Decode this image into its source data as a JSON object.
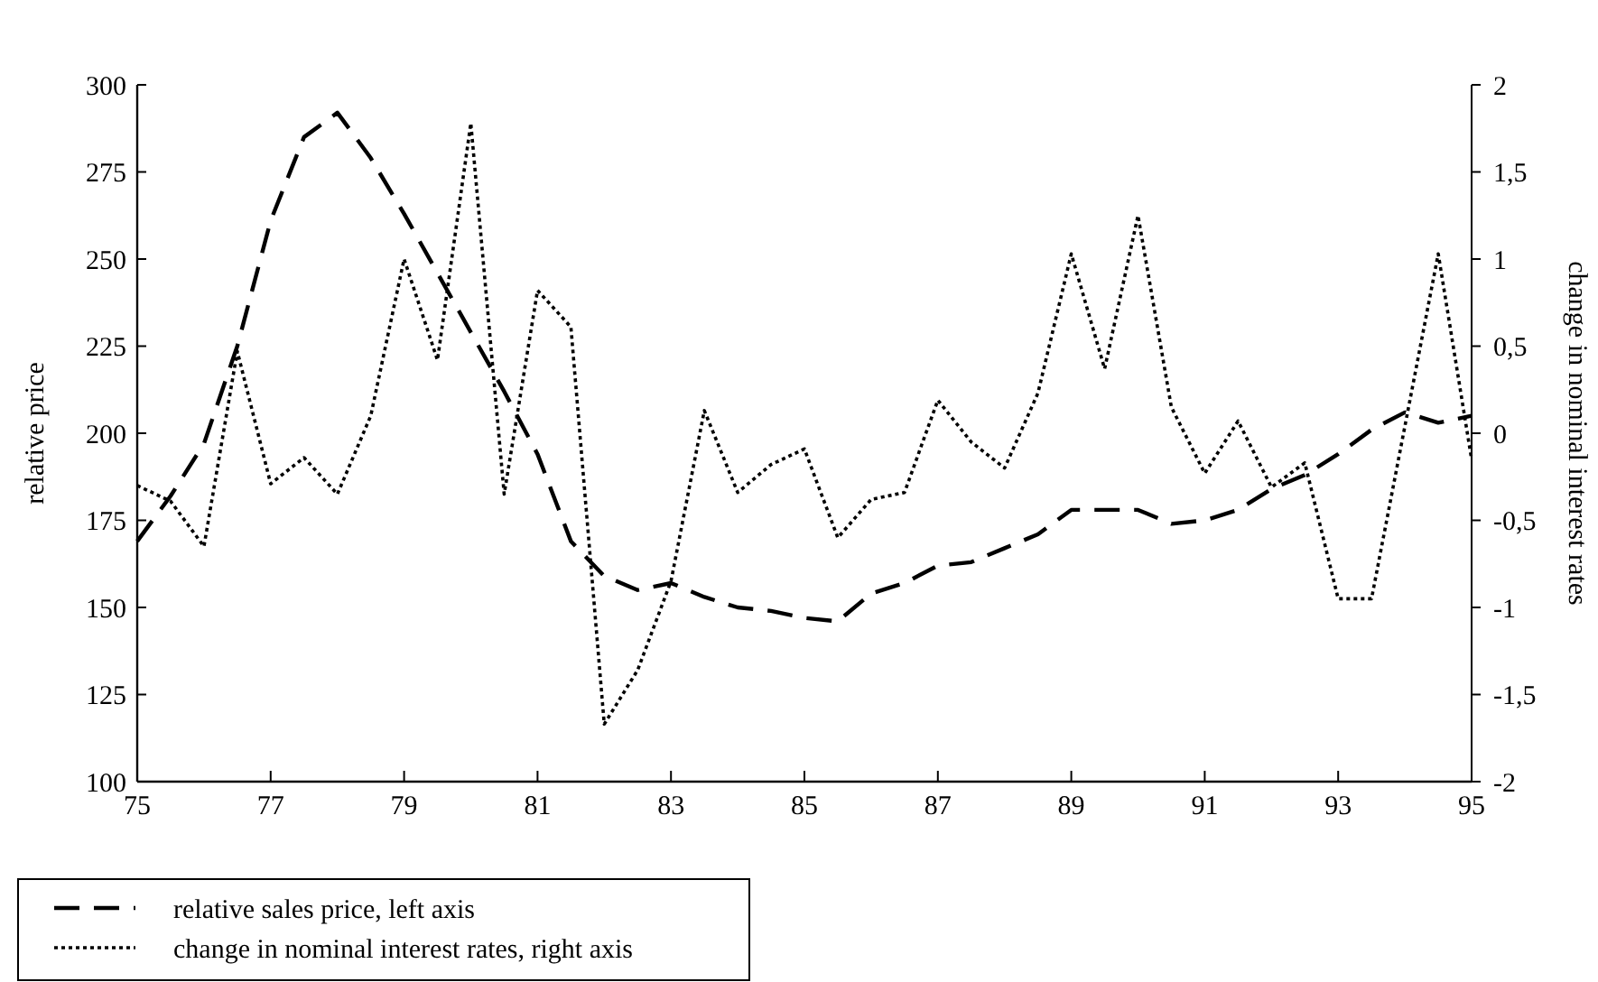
{
  "chart_data": {
    "type": "line",
    "xlabel": null,
    "ylabel": "relative price",
    "y2label": "change in nominal interest rates",
    "xlim": [
      75,
      95
    ],
    "xticks": [
      75,
      77,
      79,
      81,
      83,
      85,
      87,
      89,
      91,
      93,
      95
    ],
    "ylim": [
      100,
      300
    ],
    "yticks": [
      100,
      125,
      150,
      175,
      200,
      225,
      250,
      275,
      300
    ],
    "y2lim": [
      -2,
      2
    ],
    "y2ticks": [
      {
        "value": -2,
        "label": "-2"
      },
      {
        "value": -1.5,
        "label": "-1,5"
      },
      {
        "value": -1,
        "label": "-1"
      },
      {
        "value": -0.5,
        "label": "-0,5"
      },
      {
        "value": 0,
        "label": "0"
      },
      {
        "value": 0.5,
        "label": "0,5"
      },
      {
        "value": 1,
        "label": "1"
      },
      {
        "value": 1.5,
        "label": "1,5"
      },
      {
        "value": 2,
        "label": "2"
      }
    ],
    "legend": "bottom left",
    "grid": false,
    "marker": "none",
    "series": [
      {
        "name": "relative sales price, left axis",
        "color": "#000000",
        "line_style": "dashed",
        "x": [
          75,
          75.5,
          76,
          76.5,
          77,
          77.5,
          78,
          78.5,
          79,
          79.5,
          80,
          80.5,
          81,
          81.5,
          82,
          82.5,
          83,
          83.5,
          84,
          84.5,
          85,
          85.5,
          86,
          86.5,
          87,
          87.5,
          88,
          88.5,
          89,
          89.5,
          90,
          90.5,
          91,
          91.5,
          92,
          92.5,
          93,
          93.5,
          94,
          94.5,
          95
        ],
        "values": [
          169,
          182,
          197,
          225,
          261,
          285,
          292,
          279,
          263,
          246,
          229,
          212,
          194,
          169,
          159,
          155,
          157,
          153,
          150,
          149,
          147,
          146,
          154,
          157,
          162,
          163,
          167,
          171,
          178,
          178,
          178,
          174,
          175,
          178,
          184,
          188,
          194,
          201,
          206,
          203,
          205
        ]
      },
      {
        "name": "change in nominal interest rates, right axis",
        "color": "#000000",
        "line_style": "dotted",
        "axis": "y2",
        "x": [
          75,
          75.5,
          76,
          76.5,
          77,
          77.5,
          78,
          78.5,
          79,
          79.5,
          80,
          80.5,
          81,
          81.5,
          82,
          82.5,
          83,
          83.5,
          84,
          84.5,
          85,
          85.5,
          86,
          86.5,
          87,
          87.5,
          88,
          88.5,
          89,
          89.5,
          90,
          90.5,
          91,
          91.5,
          92,
          92.5,
          93,
          93.5,
          94.5,
          95
        ],
        "values": [
          -0.3,
          -0.39,
          -0.65,
          0.47,
          -0.29,
          -0.14,
          -0.35,
          0.1,
          1.0,
          0.42,
          1.78,
          -0.35,
          0.82,
          0.61,
          -1.67,
          -1.36,
          -0.85,
          0.13,
          -0.34,
          -0.18,
          -0.09,
          -0.6,
          -0.38,
          -0.34,
          0.19,
          -0.05,
          -0.2,
          0.23,
          1.03,
          0.37,
          1.25,
          0.15,
          -0.23,
          0.07,
          -0.31,
          -0.17,
          -0.95,
          -0.95,
          1.03,
          -0.15
        ]
      }
    ]
  }
}
